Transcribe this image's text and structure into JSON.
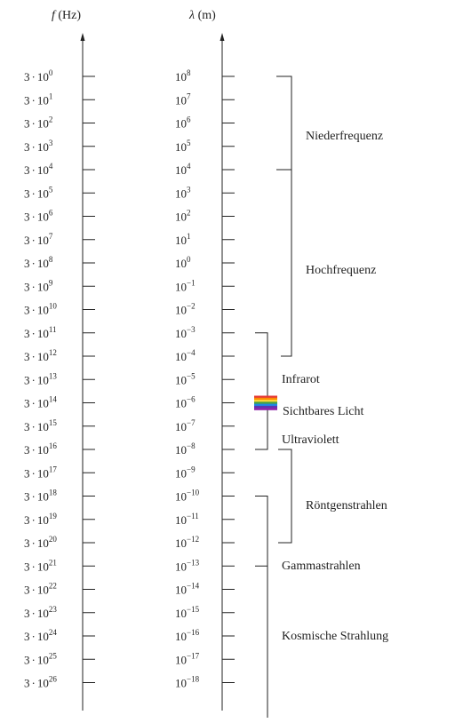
{
  "headers": {
    "frequency_symbol": "f",
    "frequency_unit": " (Hz)",
    "wavelength_symbol": "λ",
    "wavelength_unit": " (m)"
  },
  "frequency": {
    "mantissa": "3",
    "base": "10",
    "exponents": [
      "0",
      "1",
      "2",
      "3",
      "4",
      "5",
      "6",
      "7",
      "8",
      "9",
      "10",
      "11",
      "12",
      "13",
      "14",
      "15",
      "16",
      "17",
      "18",
      "19",
      "20",
      "21",
      "22",
      "23",
      "24",
      "25",
      "26"
    ]
  },
  "wavelength": {
    "base": "10",
    "exponents": [
      "8",
      "7",
      "6",
      "5",
      "4",
      "3",
      "2",
      "1",
      "0",
      "−1",
      "−2",
      "−3",
      "−4",
      "−5",
      "−6",
      "−7",
      "−8",
      "−9",
      "−10",
      "−11",
      "−12",
      "−13",
      "−14",
      "−15",
      "−16",
      "−17",
      "−18"
    ]
  },
  "ranges": [
    {
      "name": "Niederfrequenz",
      "from_exp": 0,
      "to_exp": 4
    },
    {
      "name": "Hochfrequenz",
      "from_exp": 4,
      "to_exp": 12
    },
    {
      "name": "Infrarot",
      "from_exp": 11,
      "to_exp": 14
    },
    {
      "name": "Sichtbares Licht",
      "at_exp": 14
    },
    {
      "name": "Ultraviolett",
      "from_exp": 14,
      "to_exp": 16
    },
    {
      "name": "Röntgenstrahlen",
      "from_exp": 16,
      "to_exp": 20
    },
    {
      "name": "Gammastrahlen",
      "from_exp": 18
    },
    {
      "name": "Kosmische Strahlung",
      "from_exp": 18
    }
  ],
  "spectrum_colors": [
    "#e53935",
    "#fb8c00",
    "#fdd835",
    "#43a047",
    "#1e88e5",
    "#5e35b1",
    "#8e24aa"
  ]
}
